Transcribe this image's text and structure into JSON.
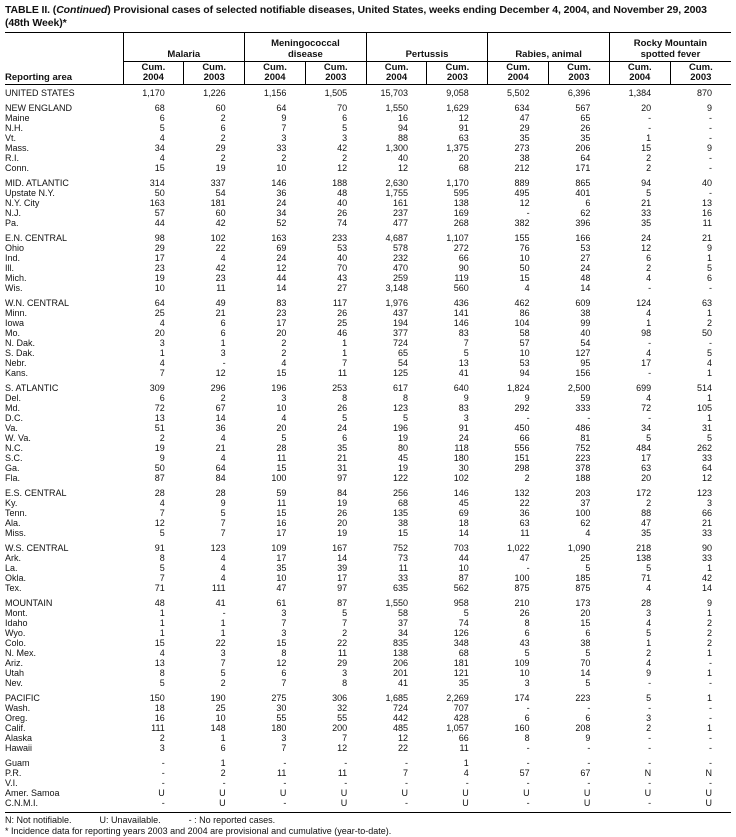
{
  "title": {
    "prefix": "TABLE II. (",
    "italic": "Continued",
    "suffix": ") Provisional cases of selected notifiable diseases, United States, weeks ending December 4, 2004, and November 29, 2003",
    "line2": "(48th Week)*"
  },
  "columns": {
    "reporting_area": "Reporting area",
    "groups": [
      {
        "lines": [
          "Malaria"
        ]
      },
      {
        "lines": [
          "Meningococcal",
          "disease"
        ]
      },
      {
        "lines": [
          "Pertussis"
        ]
      },
      {
        "lines": [
          "Rabies, animal"
        ]
      },
      {
        "lines": [
          "Rocky Mountain",
          "spotted fever"
        ]
      }
    ],
    "subcols": [
      {
        "line1": "Cum.",
        "line2": "2004"
      },
      {
        "line1": "Cum.",
        "line2": "2003"
      }
    ]
  },
  "rows": [
    {
      "area": "UNITED STATES",
      "gap": false,
      "values": [
        "1,170",
        "1,226",
        "1,156",
        "1,505",
        "15,703",
        "9,058",
        "5,502",
        "6,396",
        "1,384",
        "870"
      ]
    },
    {
      "area": "NEW ENGLAND",
      "gap": true,
      "values": [
        "68",
        "60",
        "64",
        "70",
        "1,550",
        "1,629",
        "634",
        "567",
        "20",
        "9"
      ]
    },
    {
      "area": "Maine",
      "gap": false,
      "values": [
        "6",
        "2",
        "9",
        "6",
        "16",
        "12",
        "47",
        "65",
        "-",
        "-"
      ]
    },
    {
      "area": "N.H.",
      "gap": false,
      "values": [
        "5",
        "6",
        "7",
        "5",
        "94",
        "91",
        "29",
        "26",
        "-",
        "-"
      ]
    },
    {
      "area": "Vt.",
      "gap": false,
      "values": [
        "4",
        "2",
        "3",
        "3",
        "88",
        "63",
        "35",
        "35",
        "1",
        "-"
      ]
    },
    {
      "area": "Mass.",
      "gap": false,
      "values": [
        "34",
        "29",
        "33",
        "42",
        "1,300",
        "1,375",
        "273",
        "206",
        "15",
        "9"
      ]
    },
    {
      "area": "R.I.",
      "gap": false,
      "values": [
        "4",
        "2",
        "2",
        "2",
        "40",
        "20",
        "38",
        "64",
        "2",
        "-"
      ]
    },
    {
      "area": "Conn.",
      "gap": false,
      "values": [
        "15",
        "19",
        "10",
        "12",
        "12",
        "68",
        "212",
        "171",
        "2",
        "-"
      ]
    },
    {
      "area": "MID. ATLANTIC",
      "gap": true,
      "values": [
        "314",
        "337",
        "146",
        "188",
        "2,630",
        "1,170",
        "889",
        "865",
        "94",
        "40"
      ]
    },
    {
      "area": "Upstate N.Y.",
      "gap": false,
      "values": [
        "50",
        "54",
        "36",
        "48",
        "1,755",
        "595",
        "495",
        "401",
        "5",
        "-"
      ]
    },
    {
      "area": "N.Y. City",
      "gap": false,
      "values": [
        "163",
        "181",
        "24",
        "40",
        "161",
        "138",
        "12",
        "6",
        "21",
        "13"
      ]
    },
    {
      "area": "N.J.",
      "gap": false,
      "values": [
        "57",
        "60",
        "34",
        "26",
        "237",
        "169",
        "-",
        "62",
        "33",
        "16"
      ]
    },
    {
      "area": "Pa.",
      "gap": false,
      "values": [
        "44",
        "42",
        "52",
        "74",
        "477",
        "268",
        "382",
        "396",
        "35",
        "11"
      ]
    },
    {
      "area": "E.N. CENTRAL",
      "gap": true,
      "values": [
        "98",
        "102",
        "163",
        "233",
        "4,687",
        "1,107",
        "155",
        "166",
        "24",
        "21"
      ]
    },
    {
      "area": "Ohio",
      "gap": false,
      "values": [
        "29",
        "22",
        "69",
        "53",
        "578",
        "272",
        "76",
        "53",
        "12",
        "9"
      ]
    },
    {
      "area": "Ind.",
      "gap": false,
      "values": [
        "17",
        "4",
        "24",
        "40",
        "232",
        "66",
        "10",
        "27",
        "6",
        "1"
      ]
    },
    {
      "area": "Ill.",
      "gap": false,
      "values": [
        "23",
        "42",
        "12",
        "70",
        "470",
        "90",
        "50",
        "24",
        "2",
        "5"
      ]
    },
    {
      "area": "Mich.",
      "gap": false,
      "values": [
        "19",
        "23",
        "44",
        "43",
        "259",
        "119",
        "15",
        "48",
        "4",
        "6"
      ]
    },
    {
      "area": "Wis.",
      "gap": false,
      "values": [
        "10",
        "11",
        "14",
        "27",
        "3,148",
        "560",
        "4",
        "14",
        "-",
        "-"
      ]
    },
    {
      "area": "W.N. CENTRAL",
      "gap": true,
      "values": [
        "64",
        "49",
        "83",
        "117",
        "1,976",
        "436",
        "462",
        "609",
        "124",
        "63"
      ]
    },
    {
      "area": "Minn.",
      "gap": false,
      "values": [
        "25",
        "21",
        "23",
        "26",
        "437",
        "141",
        "86",
        "38",
        "4",
        "1"
      ]
    },
    {
      "area": "Iowa",
      "gap": false,
      "values": [
        "4",
        "6",
        "17",
        "25",
        "194",
        "146",
        "104",
        "99",
        "1",
        "2"
      ]
    },
    {
      "area": "Mo.",
      "gap": false,
      "values": [
        "20",
        "6",
        "20",
        "46",
        "377",
        "83",
        "58",
        "40",
        "98",
        "50"
      ]
    },
    {
      "area": "N. Dak.",
      "gap": false,
      "values": [
        "3",
        "1",
        "2",
        "1",
        "724",
        "7",
        "57",
        "54",
        "-",
        "-"
      ]
    },
    {
      "area": "S. Dak.",
      "gap": false,
      "values": [
        "1",
        "3",
        "2",
        "1",
        "65",
        "5",
        "10",
        "127",
        "4",
        "5"
      ]
    },
    {
      "area": "Nebr.",
      "gap": false,
      "values": [
        "4",
        "-",
        "4",
        "7",
        "54",
        "13",
        "53",
        "95",
        "17",
        "4"
      ]
    },
    {
      "area": "Kans.",
      "gap": false,
      "values": [
        "7",
        "12",
        "15",
        "11",
        "125",
        "41",
        "94",
        "156",
        "-",
        "1"
      ]
    },
    {
      "area": "S. ATLANTIC",
      "gap": true,
      "values": [
        "309",
        "296",
        "196",
        "253",
        "617",
        "640",
        "1,824",
        "2,500",
        "699",
        "514"
      ]
    },
    {
      "area": "Del.",
      "gap": false,
      "values": [
        "6",
        "2",
        "3",
        "8",
        "8",
        "9",
        "9",
        "59",
        "4",
        "1"
      ]
    },
    {
      "area": "Md.",
      "gap": false,
      "values": [
        "72",
        "67",
        "10",
        "26",
        "123",
        "83",
        "292",
        "333",
        "72",
        "105"
      ]
    },
    {
      "area": "D.C.",
      "gap": false,
      "values": [
        "13",
        "14",
        "4",
        "5",
        "5",
        "3",
        "-",
        "-",
        "-",
        "1"
      ]
    },
    {
      "area": "Va.",
      "gap": false,
      "values": [
        "51",
        "36",
        "20",
        "24",
        "196",
        "91",
        "450",
        "486",
        "34",
        "31"
      ]
    },
    {
      "area": "W. Va.",
      "gap": false,
      "values": [
        "2",
        "4",
        "5",
        "6",
        "19",
        "24",
        "66",
        "81",
        "5",
        "5"
      ]
    },
    {
      "area": "N.C.",
      "gap": false,
      "values": [
        "19",
        "21",
        "28",
        "35",
        "80",
        "118",
        "556",
        "752",
        "484",
        "262"
      ]
    },
    {
      "area": "S.C.",
      "gap": false,
      "values": [
        "9",
        "4",
        "11",
        "21",
        "45",
        "180",
        "151",
        "223",
        "17",
        "33"
      ]
    },
    {
      "area": "Ga.",
      "gap": false,
      "values": [
        "50",
        "64",
        "15",
        "31",
        "19",
        "30",
        "298",
        "378",
        "63",
        "64"
      ]
    },
    {
      "area": "Fla.",
      "gap": false,
      "values": [
        "87",
        "84",
        "100",
        "97",
        "122",
        "102",
        "2",
        "188",
        "20",
        "12"
      ]
    },
    {
      "area": "E.S. CENTRAL",
      "gap": true,
      "values": [
        "28",
        "28",
        "59",
        "84",
        "256",
        "146",
        "132",
        "203",
        "172",
        "123"
      ]
    },
    {
      "area": "Ky.",
      "gap": false,
      "values": [
        "4",
        "9",
        "11",
        "19",
        "68",
        "45",
        "22",
        "37",
        "2",
        "3"
      ]
    },
    {
      "area": "Tenn.",
      "gap": false,
      "values": [
        "7",
        "5",
        "15",
        "26",
        "135",
        "69",
        "36",
        "100",
        "88",
        "66"
      ]
    },
    {
      "area": "Ala.",
      "gap": false,
      "values": [
        "12",
        "7",
        "16",
        "20",
        "38",
        "18",
        "63",
        "62",
        "47",
        "21"
      ]
    },
    {
      "area": "Miss.",
      "gap": false,
      "values": [
        "5",
        "7",
        "17",
        "19",
        "15",
        "14",
        "11",
        "4",
        "35",
        "33"
      ]
    },
    {
      "area": "W.S. CENTRAL",
      "gap": true,
      "values": [
        "91",
        "123",
        "109",
        "167",
        "752",
        "703",
        "1,022",
        "1,090",
        "218",
        "90"
      ]
    },
    {
      "area": "Ark.",
      "gap": false,
      "values": [
        "8",
        "4",
        "17",
        "14",
        "73",
        "44",
        "47",
        "25",
        "138",
        "33"
      ]
    },
    {
      "area": "La.",
      "gap": false,
      "values": [
        "5",
        "4",
        "35",
        "39",
        "11",
        "10",
        "-",
        "5",
        "5",
        "1"
      ]
    },
    {
      "area": "Okla.",
      "gap": false,
      "values": [
        "7",
        "4",
        "10",
        "17",
        "33",
        "87",
        "100",
        "185",
        "71",
        "42"
      ]
    },
    {
      "area": "Tex.",
      "gap": false,
      "values": [
        "71",
        "111",
        "47",
        "97",
        "635",
        "562",
        "875",
        "875",
        "4",
        "14"
      ]
    },
    {
      "area": "MOUNTAIN",
      "gap": true,
      "values": [
        "48",
        "41",
        "61",
        "87",
        "1,550",
        "958",
        "210",
        "173",
        "28",
        "9"
      ]
    },
    {
      "area": "Mont.",
      "gap": false,
      "values": [
        "1",
        "-",
        "3",
        "5",
        "58",
        "5",
        "26",
        "20",
        "3",
        "1"
      ]
    },
    {
      "area": "Idaho",
      "gap": false,
      "values": [
        "1",
        "1",
        "7",
        "7",
        "37",
        "74",
        "8",
        "15",
        "4",
        "2"
      ]
    },
    {
      "area": "Wyo.",
      "gap": false,
      "values": [
        "1",
        "1",
        "3",
        "2",
        "34",
        "126",
        "6",
        "6",
        "5",
        "2"
      ]
    },
    {
      "area": "Colo.",
      "gap": false,
      "values": [
        "15",
        "22",
        "15",
        "22",
        "835",
        "348",
        "43",
        "38",
        "1",
        "2"
      ]
    },
    {
      "area": "N. Mex.",
      "gap": false,
      "values": [
        "4",
        "3",
        "8",
        "11",
        "138",
        "68",
        "5",
        "5",
        "2",
        "1"
      ]
    },
    {
      "area": "Ariz.",
      "gap": false,
      "values": [
        "13",
        "7",
        "12",
        "29",
        "206",
        "181",
        "109",
        "70",
        "4",
        "-"
      ]
    },
    {
      "area": "Utah",
      "gap": false,
      "values": [
        "8",
        "5",
        "6",
        "3",
        "201",
        "121",
        "10",
        "14",
        "9",
        "1"
      ]
    },
    {
      "area": "Nev.",
      "gap": false,
      "values": [
        "5",
        "2",
        "7",
        "8",
        "41",
        "35",
        "3",
        "5",
        "-",
        "-"
      ]
    },
    {
      "area": "PACIFIC",
      "gap": true,
      "values": [
        "150",
        "190",
        "275",
        "306",
        "1,685",
        "2,269",
        "174",
        "223",
        "5",
        "1"
      ]
    },
    {
      "area": "Wash.",
      "gap": false,
      "values": [
        "18",
        "25",
        "30",
        "32",
        "724",
        "707",
        "-",
        "-",
        "-",
        "-"
      ]
    },
    {
      "area": "Oreg.",
      "gap": false,
      "values": [
        "16",
        "10",
        "55",
        "55",
        "442",
        "428",
        "6",
        "6",
        "3",
        "-"
      ]
    },
    {
      "area": "Calif.",
      "gap": false,
      "values": [
        "111",
        "148",
        "180",
        "200",
        "485",
        "1,057",
        "160",
        "208",
        "2",
        "1"
      ]
    },
    {
      "area": "Alaska",
      "gap": false,
      "values": [
        "2",
        "1",
        "3",
        "7",
        "12",
        "66",
        "8",
        "9",
        "-",
        "-"
      ]
    },
    {
      "area": "Hawaii",
      "gap": false,
      "values": [
        "3",
        "6",
        "7",
        "12",
        "22",
        "11",
        "-",
        "-",
        "-",
        "-"
      ]
    },
    {
      "area": "Guam",
      "gap": true,
      "values": [
        "-",
        "1",
        "-",
        "-",
        "-",
        "1",
        "-",
        "-",
        "-",
        "-"
      ]
    },
    {
      "area": "P.R.",
      "gap": false,
      "values": [
        "-",
        "2",
        "11",
        "11",
        "7",
        "4",
        "57",
        "67",
        "N",
        "N"
      ]
    },
    {
      "area": "V.I.",
      "gap": false,
      "values": [
        "-",
        "-",
        "-",
        "-",
        "-",
        "-",
        "-",
        "-",
        "-",
        "-"
      ]
    },
    {
      "area": "Amer. Samoa",
      "gap": false,
      "values": [
        "U",
        "U",
        "U",
        "U",
        "U",
        "U",
        "U",
        "U",
        "U",
        "U"
      ]
    },
    {
      "area": "C.N.M.I.",
      "gap": false,
      "values": [
        "-",
        "U",
        "-",
        "U",
        "-",
        "U",
        "-",
        "U",
        "-",
        "U"
      ]
    }
  ],
  "footnotes": {
    "legend": [
      "N: Not notifiable.",
      "U: Unavailable.",
      "- : No reported cases."
    ],
    "note": "* Incidence data for reporting years 2003 and 2004 are provisional and cumulative (year-to-date)."
  },
  "colors": {
    "text": "#111111",
    "rule": "#000000",
    "background": "#ffffff"
  }
}
